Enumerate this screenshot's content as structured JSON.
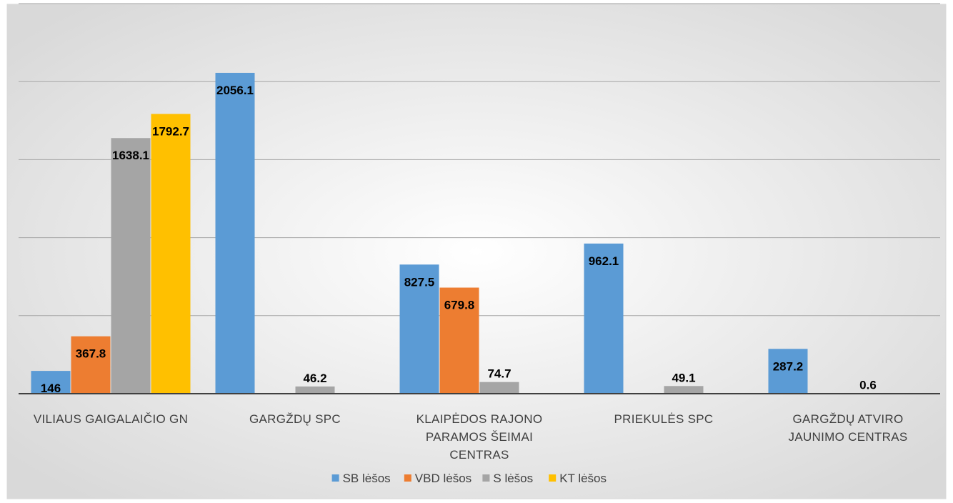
{
  "chart_data": {
    "type": "bar",
    "title": "",
    "xlabel": "",
    "ylabel": "",
    "ylim": [
      0,
      2500
    ],
    "grid": true,
    "legend_position": "bottom",
    "categories": [
      [
        "VILIAUS GAIGALAIČIO GN"
      ],
      [
        "GARGŽDŲ SPC"
      ],
      [
        "KLAIPĖDOS RAJONO",
        "PARAMOS ŠEIMAI",
        "CENTRAS"
      ],
      [
        "PRIEKULĖS SPC"
      ],
      [
        "GARGŽDŲ ATVIRO",
        "JAUNIMO CENTRAS"
      ]
    ],
    "series": [
      {
        "name": "SB lėšos",
        "color": "#5B9BD5",
        "values": [
          146,
          2056.1,
          827.5,
          962.1,
          287.2
        ]
      },
      {
        "name": "VBD lėšos",
        "color": "#ED7D31",
        "values": [
          367.8,
          null,
          679.8,
          null,
          null
        ]
      },
      {
        "name": "S lėšos",
        "color": "#A5A5A5",
        "values": [
          1638.1,
          46.2,
          74.7,
          49.1,
          0.6
        ]
      },
      {
        "name": "KT lėšos",
        "color": "#FFC000",
        "values": [
          1792.7,
          null,
          null,
          null,
          null
        ]
      }
    ],
    "data_labels": [
      [
        "146",
        "2056.1",
        "827.5",
        "962.1",
        "287.2"
      ],
      [
        "367.8",
        "",
        "679.8",
        "",
        ""
      ],
      [
        "1638.1",
        "46.2",
        "74.7",
        "49.1",
        "0.6"
      ],
      [
        "1792.7",
        "",
        "",
        "",
        ""
      ]
    ]
  }
}
